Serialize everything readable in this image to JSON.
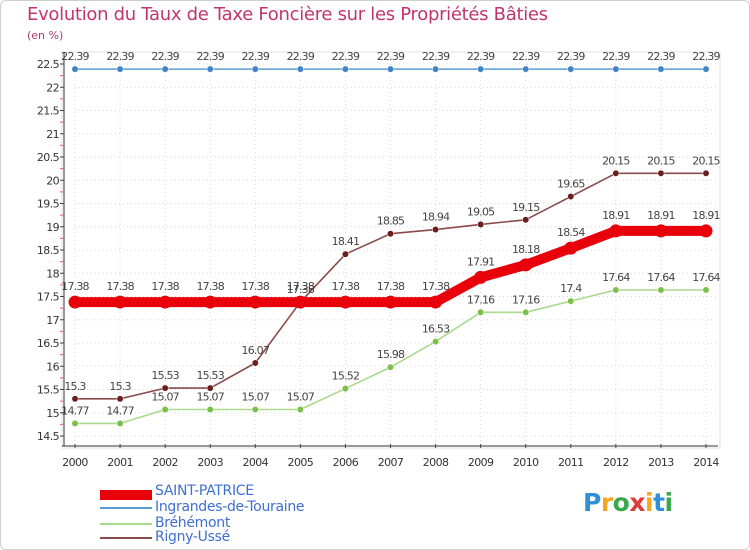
{
  "title": "Evolution du Taux de Taxe Foncière sur les Propriétés Bâties",
  "unit_label": "(en %)",
  "logo": {
    "letters": [
      "P",
      "r",
      "o",
      "x",
      "i",
      "t",
      "i"
    ],
    "colors": [
      "#2f8fd8",
      "#f5a623",
      "#3aa84a",
      "#e03a3a",
      "#f5a623",
      "#2f8fd8",
      "#3aa84a"
    ]
  },
  "chart_data": {
    "type": "line",
    "title": "Evolution du Taux de Taxe Foncière sur les Propriétés Bâties",
    "ylabel": "(en %)",
    "xlabel": "",
    "x": [
      "2000",
      "2001",
      "2002",
      "2003",
      "2004",
      "2005",
      "2006",
      "2007",
      "2008",
      "2009",
      "2010",
      "2011",
      "2012",
      "2013",
      "2014"
    ],
    "ylim": [
      14.5,
      22.5
    ],
    "yticks": [
      "14.5",
      "15",
      "15.5",
      "16",
      "16.5",
      "17",
      "17.5",
      "18",
      "18.5",
      "19",
      "19.5",
      "20",
      "20.5",
      "21",
      "21.5",
      "22",
      "22.5"
    ],
    "series": [
      {
        "name": "Ingrandes-de-Touraine",
        "color": "#5b9bd5",
        "dot": "#3f84c4",
        "values": [
          22.39,
          22.39,
          22.39,
          22.39,
          22.39,
          22.39,
          22.39,
          22.39,
          22.39,
          22.39,
          22.39,
          22.39,
          22.39,
          22.39,
          22.39
        ],
        "labels": [
          "22.39",
          "22.39",
          "22.39",
          "22.39",
          "22.39",
          "22.39",
          "22.39",
          "22.39",
          "22.39",
          "22.39",
          "22.39",
          "22.39",
          "22.39",
          "22.39",
          "22.39"
        ]
      },
      {
        "name": "Rigny-Ussé",
        "color": "#8b4a4a",
        "dot": "#6b1e1e",
        "values": [
          15.3,
          15.3,
          15.53,
          15.53,
          16.07,
          17.38,
          18.41,
          18.85,
          18.94,
          19.05,
          19.15,
          19.65,
          20.15,
          20.15,
          20.15
        ],
        "labels": [
          "15.3",
          "15.3",
          "15.53",
          "15.53",
          "16.07",
          "17.38",
          "18.41",
          "18.85",
          "18.94",
          "19.05",
          "19.15",
          "19.65",
          "20.15",
          "20.15",
          "20.15"
        ]
      },
      {
        "name": "Bréhémont",
        "color": "#a9d98a",
        "dot": "#7cc04c",
        "values": [
          14.77,
          14.77,
          15.07,
          15.07,
          15.07,
          15.07,
          15.52,
          15.98,
          16.53,
          17.16,
          17.16,
          17.4,
          17.64,
          17.64,
          17.64
        ],
        "labels": [
          "14.77",
          "14.77",
          "15.07",
          "15.07",
          "15.07",
          "15.07",
          "15.52",
          "15.98",
          "16.53",
          "17.16",
          "17.16",
          "17.4",
          "17.64",
          "17.64",
          "17.64"
        ]
      },
      {
        "name": "SAINT-PATRICE",
        "color": "#e8000b",
        "dot": "#e8000b",
        "values": [
          17.38,
          17.38,
          17.38,
          17.38,
          17.38,
          17.38,
          17.38,
          17.38,
          17.38,
          17.91,
          18.18,
          18.54,
          18.91,
          18.91,
          18.91
        ],
        "labels": [
          "17.38",
          "17.38",
          "17.38",
          "17.38",
          "17.38",
          "17.38",
          "17.38",
          "17.38",
          "17.38",
          "17.91",
          "18.18",
          "18.54",
          "18.91",
          "18.91",
          "18.91"
        ]
      }
    ],
    "legend": [
      {
        "name": "SAINT-PATRICE",
        "color": "#e8000b"
      },
      {
        "name": "Ingrandes-de-Touraine",
        "color": "#5b9bd5"
      },
      {
        "name": "Bréhémont",
        "color": "#a9d98a"
      },
      {
        "name": "Rigny-Ussé",
        "color": "#8b4a4a"
      }
    ],
    "legend_position": "bottom-left"
  }
}
